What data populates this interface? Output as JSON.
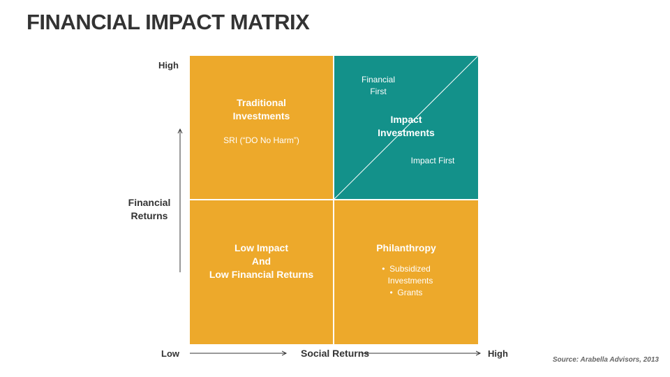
{
  "title": "FINANCIAL IMPACT MATRIX",
  "y_axis": {
    "high": "High",
    "label_line1": "Financial",
    "label_line2": "Returns"
  },
  "x_axis": {
    "low": "Low",
    "label": "Social Returns",
    "high": "High"
  },
  "quadrants": {
    "top_left": {
      "title_line1": "Traditional",
      "title_line2": "Investments",
      "sub": "SRI (“DO No Harm”)"
    },
    "top_right": {
      "upper_line1": "Financial",
      "upper_line2": "First",
      "title_line1": "Impact",
      "title_line2": "Investments",
      "lower": "Impact First"
    },
    "bottom_left": {
      "line1": "Low Impact",
      "line2": "And",
      "line3": "Low Financial Returns"
    },
    "bottom_right": {
      "title": "Philanthropy",
      "bullets": [
        "Subsidized",
        "Investments",
        "Grants"
      ]
    }
  },
  "source": "Source: Arabella Advisors, 2013",
  "colors": {
    "orange": "#EDA92B",
    "teal": "#13918A",
    "title": "#333333"
  }
}
